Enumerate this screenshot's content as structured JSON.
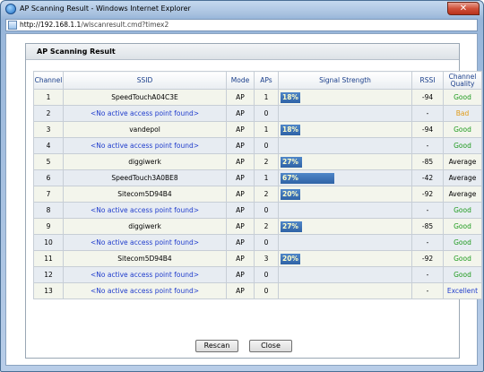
{
  "window": {
    "title": "AP Scanning Result - Windows Internet Explorer",
    "address_host": "http://192.168.1.1",
    "address_path": "/wlscanresult.cmd?timex2"
  },
  "panel": {
    "title": "AP  Scanning  Result"
  },
  "table": {
    "headers": {
      "channel": "Channel",
      "ssid": "SSID",
      "mode": "Mode",
      "aps": "APs",
      "signal": "Signal Strength",
      "rssi": "RSSI",
      "quality": "Channel Quality"
    },
    "rows": [
      {
        "channel": "1",
        "ssid": "SpeedTouchA04C3E",
        "mode": "AP",
        "aps": "1",
        "signal": "18%",
        "signal_pct": 18,
        "rssi": "-94",
        "quality": "Good",
        "quality_class": "good"
      },
      {
        "channel": "2",
        "ssid": "<No active access point found>",
        "mode": "AP",
        "aps": "0",
        "signal": "",
        "signal_pct": 0,
        "rssi": "-",
        "quality": "Bad",
        "quality_class": "bad"
      },
      {
        "channel": "3",
        "ssid": "vandepol",
        "mode": "AP",
        "aps": "1",
        "signal": "18%",
        "signal_pct": 18,
        "rssi": "-94",
        "quality": "Good",
        "quality_class": "good"
      },
      {
        "channel": "4",
        "ssid": "<No active access point found>",
        "mode": "AP",
        "aps": "0",
        "signal": "",
        "signal_pct": 0,
        "rssi": "-",
        "quality": "Good",
        "quality_class": "good"
      },
      {
        "channel": "5",
        "ssid": "diggiwerk",
        "mode": "AP",
        "aps": "2",
        "signal": "27%",
        "signal_pct": 27,
        "rssi": "-85",
        "quality": "Average",
        "quality_class": "average"
      },
      {
        "channel": "6",
        "ssid": "SpeedTouch3A0BE8",
        "mode": "AP",
        "aps": "1",
        "signal": "67%",
        "signal_pct": 67,
        "rssi": "-42",
        "quality": "Average",
        "quality_class": "average"
      },
      {
        "channel": "7",
        "ssid": "Sitecom5D94B4",
        "mode": "AP",
        "aps": "2",
        "signal": "20%",
        "signal_pct": 20,
        "rssi": "-92",
        "quality": "Average",
        "quality_class": "average"
      },
      {
        "channel": "8",
        "ssid": "<No active access point found>",
        "mode": "AP",
        "aps": "0",
        "signal": "",
        "signal_pct": 0,
        "rssi": "-",
        "quality": "Good",
        "quality_class": "good"
      },
      {
        "channel": "9",
        "ssid": "diggiwerk",
        "mode": "AP",
        "aps": "2",
        "signal": "27%",
        "signal_pct": 27,
        "rssi": "-85",
        "quality": "Good",
        "quality_class": "good"
      },
      {
        "channel": "10",
        "ssid": "<No active access point found>",
        "mode": "AP",
        "aps": "0",
        "signal": "",
        "signal_pct": 0,
        "rssi": "-",
        "quality": "Good",
        "quality_class": "good"
      },
      {
        "channel": "11",
        "ssid": "Sitecom5D94B4",
        "mode": "AP",
        "aps": "3",
        "signal": "20%",
        "signal_pct": 20,
        "rssi": "-92",
        "quality": "Good",
        "quality_class": "good"
      },
      {
        "channel": "12",
        "ssid": "<No active access point found>",
        "mode": "AP",
        "aps": "0",
        "signal": "",
        "signal_pct": 0,
        "rssi": "-",
        "quality": "Good",
        "quality_class": "good"
      },
      {
        "channel": "13",
        "ssid": "<No active access point found>",
        "mode": "AP",
        "aps": "0",
        "signal": "",
        "signal_pct": 0,
        "rssi": "-",
        "quality": "Excellent",
        "quality_class": "excellent"
      }
    ]
  },
  "buttons": {
    "rescan": "Rescan",
    "close": "Close"
  },
  "icons": {
    "title_icon": "internet-explorer-icon",
    "address_icon": "page-icon",
    "close_icon": "close-icon"
  },
  "colors": {
    "good": "#1e9a1e",
    "bad": "#e09a16",
    "excellent": "#1f3ccc",
    "bar": "#3a6fb3",
    "header_text": "#1b3f8b"
  }
}
